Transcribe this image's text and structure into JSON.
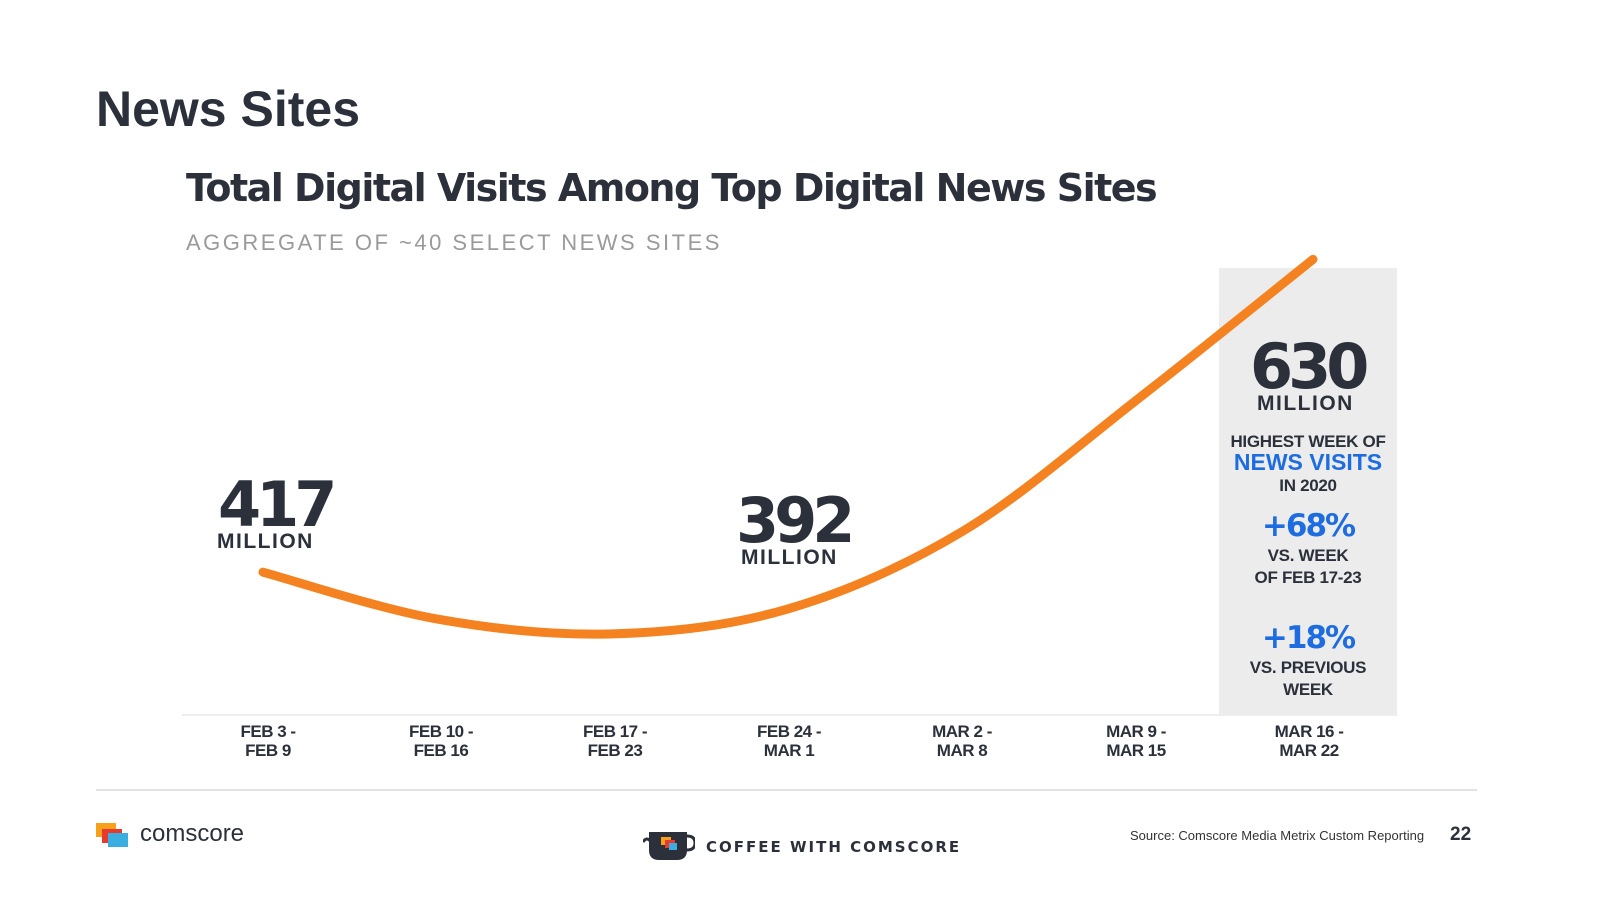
{
  "page": {
    "title": "News Sites",
    "page_number": "22",
    "source": "Source: Comscore Media Metrix Custom Reporting",
    "brand": "comscore",
    "footer_center": "COFFEE WITH COMSCORE"
  },
  "colors": {
    "line": "#f58220",
    "accent_blue": "#1e6de0",
    "highlight_bg": "#ececec",
    "text_dark": "#2b303b"
  },
  "chart_data": {
    "type": "line",
    "title": "Total Digital Visits Among Top Digital News Sites",
    "subtitle": "AGGREGATE OF ~40 SELECT NEWS SITES",
    "xlabel": "",
    "ylabel": "",
    "unit": "MILLION",
    "ylim": [
      300,
      650
    ],
    "categories": [
      [
        "FEB 3 -",
        "FEB 9"
      ],
      [
        "FEB 10 -",
        "FEB 16"
      ],
      [
        "FEB 17 -",
        "FEB 23"
      ],
      [
        "FEB 24 -",
        "MAR 1"
      ],
      [
        "MAR 2 -",
        "MAR 8"
      ],
      [
        "MAR 9 -",
        "MAR 15"
      ],
      [
        "MAR 16 -",
        "MAR 22"
      ]
    ],
    "series": [
      {
        "name": "Total Digital Visits (Millions)",
        "values": [
          417,
          385,
          375,
          392,
          445,
          535,
          630
        ]
      }
    ],
    "highlight_index": 6,
    "labels": [
      {
        "index": 0,
        "value": "417",
        "unit": "MILLION"
      },
      {
        "index": 3,
        "value": "392",
        "unit": "MILLION"
      },
      {
        "index": 6,
        "value": "630",
        "unit": "MILLION"
      }
    ],
    "callouts": {
      "highest_line1": "HIGHEST WEEK OF",
      "highest_line2": "NEWS VISITS",
      "highest_line3": "IN 2020",
      "change1_value": "+68%",
      "change1_line1": "VS. WEEK",
      "change1_line2": "OF FEB 17-23",
      "change2_value": "+18%",
      "change2_line1": "VS. PREVIOUS",
      "change2_line2": "WEEK"
    }
  }
}
